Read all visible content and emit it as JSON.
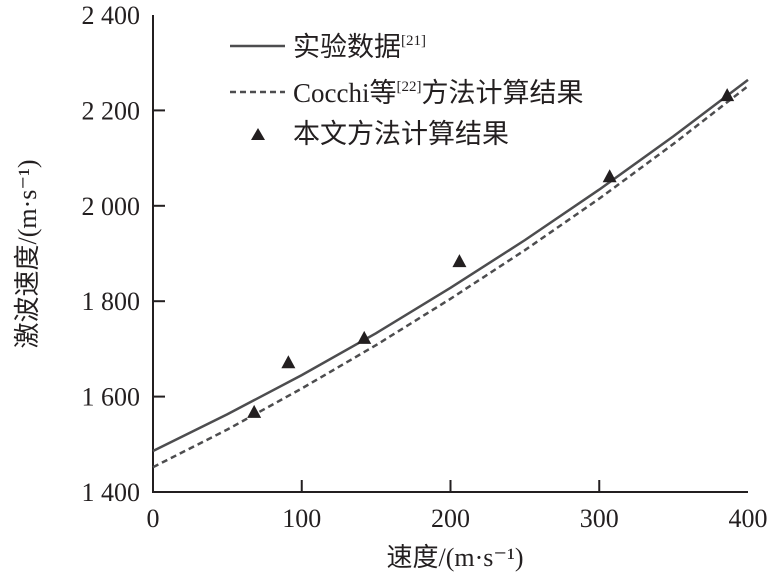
{
  "chart_data": {
    "type": "line",
    "title": "",
    "xlabel": "速度/(m·s⁻¹)",
    "ylabel": "激波速度/(m·s⁻¹)",
    "xlim": [
      0,
      400
    ],
    "ylim": [
      1400,
      2400
    ],
    "xticks": [
      {
        "v": 0,
        "label": "0"
      },
      {
        "v": 100,
        "label": "100"
      },
      {
        "v": 200,
        "label": "200"
      },
      {
        "v": 300,
        "label": "300"
      },
      {
        "v": 400,
        "label": "400"
      }
    ],
    "yticks": [
      {
        "v": 1400,
        "label": "1 400"
      },
      {
        "v": 1600,
        "label": "1 600"
      },
      {
        "v": 1800,
        "label": "1 800"
      },
      {
        "v": 2000,
        "label": "2 000"
      },
      {
        "v": 2200,
        "label": "2 200"
      },
      {
        "v": 2400,
        "label": "2 400"
      }
    ],
    "grid": false,
    "legend_position": "top-left",
    "series": [
      {
        "name": "实验数据",
        "ref": "[21]",
        "style": "solid",
        "color": "#4d4d4f",
        "x": [
          0,
          50,
          100,
          150,
          200,
          250,
          300,
          350,
          400
        ],
        "y": [
          1486,
          1563,
          1645,
          1733,
          1828,
          1928,
          2034,
          2146,
          2264
        ]
      },
      {
        "name": "Cocchi等",
        "ref": "[22]",
        "name_suffix": "方法计算结果",
        "style": "dashed",
        "color": "#4d4d4f",
        "x": [
          0,
          50,
          100,
          150,
          200,
          250,
          300,
          350,
          400
        ],
        "y": [
          1452,
          1531,
          1617,
          1708,
          1805,
          1907,
          2015,
          2130,
          2251
        ]
      },
      {
        "name": "本文方法计算结果",
        "style": "marker-triangle",
        "color": "#231f20",
        "x": [
          68,
          91,
          142,
          206,
          307,
          386
        ],
        "y": [
          1568,
          1672,
          1723,
          1884,
          2062,
          2232
        ]
      }
    ]
  }
}
